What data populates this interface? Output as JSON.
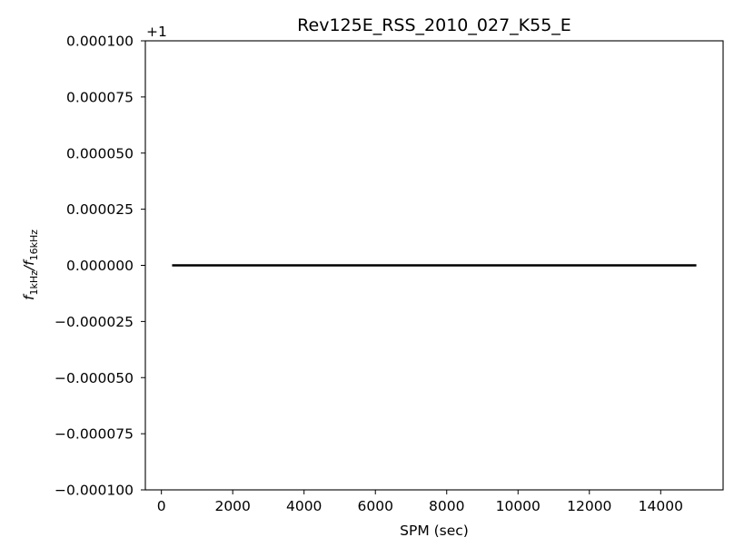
{
  "chart_data": {
    "type": "line",
    "title": "Rev125E_RSS_2010_027_K55_E",
    "xlabel": "SPM (sec)",
    "ylabel_main": "f",
    "ylabel_sub1": "1kHz",
    "ylabel_sep": "/f",
    "ylabel_sub2": "16kHz",
    "offset_label": "+1",
    "xlim": [
      -450,
      15750
    ],
    "ylim": [
      -0.0001,
      0.0001
    ],
    "xticks": [
      0,
      2000,
      4000,
      6000,
      8000,
      10000,
      12000,
      14000
    ],
    "xtick_labels": [
      "0",
      "2000",
      "4000",
      "6000",
      "8000",
      "10000",
      "12000",
      "14000"
    ],
    "yticks": [
      -0.0001,
      -7.5e-05,
      -5e-05,
      -2.5e-05,
      0,
      2.5e-05,
      5e-05,
      7.5e-05,
      0.0001
    ],
    "ytick_labels": [
      "−0.000100",
      "−0.000075",
      "−0.000050",
      "−0.000025",
      "0.000000",
      "0.000025",
      "0.000050",
      "0.000075",
      "0.000100"
    ],
    "grid": false,
    "series": [
      {
        "x": [
          300,
          15000
        ],
        "y": [
          0,
          0
        ],
        "color": "#000000"
      }
    ]
  }
}
